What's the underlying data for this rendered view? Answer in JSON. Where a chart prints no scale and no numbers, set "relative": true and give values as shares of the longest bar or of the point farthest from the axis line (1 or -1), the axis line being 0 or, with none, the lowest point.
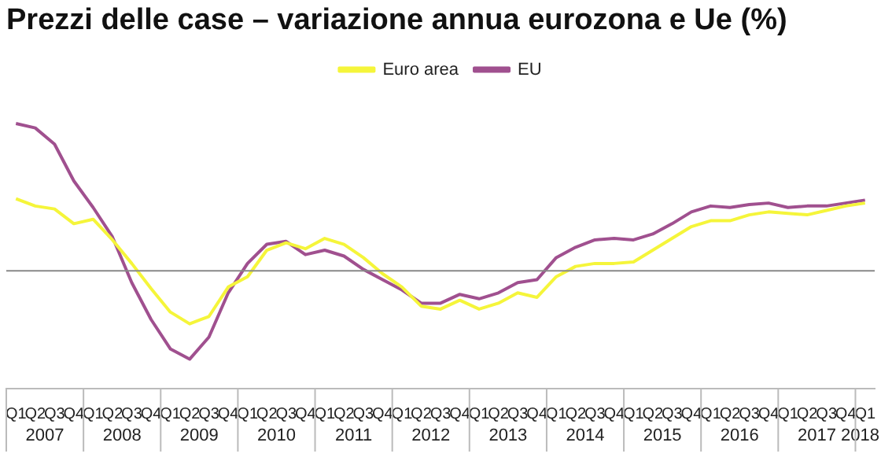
{
  "chart_data": {
    "type": "line",
    "title": "Prezzi delle case – variazione annua eurozona e Ue (%)",
    "relative": true,
    "legend": "top",
    "marker": "none",
    "categories": [
      "Q1",
      "Q2",
      "Q3",
      "Q4",
      "Q1",
      "Q2",
      "Q3",
      "Q4",
      "Q1",
      "Q2",
      "Q3",
      "Q4",
      "Q1",
      "Q2",
      "Q3",
      "Q4",
      "Q1",
      "Q2",
      "Q3",
      "Q4",
      "Q1",
      "Q2",
      "Q3",
      "Q4",
      "Q1",
      "Q2",
      "Q3",
      "Q4",
      "Q1",
      "Q2",
      "Q3",
      "Q4",
      "Q1",
      "Q2",
      "Q3",
      "Q4",
      "Q1",
      "Q2",
      "Q3",
      "Q4",
      "Q1",
      "Q2",
      "Q3",
      "Q4",
      "Q1"
    ],
    "annotations": [
      "2007",
      "2008",
      "2009",
      "2010",
      "2011",
      "2012",
      "2013",
      "2014",
      "2015",
      "2016",
      "2017",
      "2018"
    ],
    "series": [
      {
        "name": "Euro area",
        "color": "#f5f53a",
        "values": [
          0.49,
          0.44,
          0.42,
          0.32,
          0.35,
          0.21,
          0.05,
          -0.12,
          -0.28,
          -0.36,
          -0.31,
          -0.11,
          -0.04,
          0.14,
          0.19,
          0.15,
          0.22,
          0.18,
          0.09,
          -0.02,
          -0.11,
          -0.24,
          -0.26,
          -0.2,
          -0.26,
          -0.22,
          -0.15,
          -0.18,
          -0.04,
          0.03,
          0.05,
          0.05,
          0.06,
          0.14,
          0.22,
          0.3,
          0.34,
          0.34,
          0.38,
          0.4,
          0.39,
          0.38,
          0.41,
          0.44,
          0.46
        ]
      },
      {
        "name": "EU",
        "color": "#a0508f",
        "values": [
          1,
          0.97,
          0.86,
          0.61,
          0.43,
          0.23,
          -0.08,
          -0.33,
          -0.53,
          -0.6,
          -0.45,
          -0.15,
          0.05,
          0.18,
          0.2,
          0.11,
          0.14,
          0.1,
          0.01,
          -0.06,
          -0.13,
          -0.22,
          -0.22,
          -0.16,
          -0.19,
          -0.15,
          -0.08,
          -0.06,
          0.09,
          0.16,
          0.21,
          0.22,
          0.21,
          0.25,
          0.32,
          0.4,
          0.44,
          0.43,
          0.45,
          0.46,
          0.43,
          0.44,
          0.44,
          0.46,
          0.48
        ]
      }
    ]
  }
}
